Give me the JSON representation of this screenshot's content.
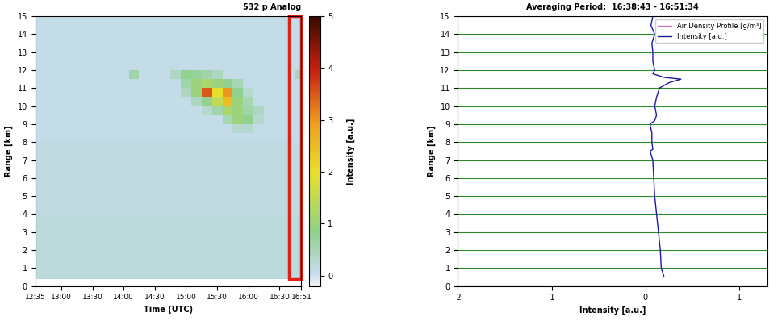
{
  "chart_data": [
    {
      "type": "heatmap",
      "title": "532 p Analog",
      "x_label": "Time (UTC)",
      "y_label": "Range [km]",
      "time_edges": [
        12.583,
        12.75,
        12.917,
        13.083,
        13.25,
        13.417,
        13.583,
        13.75,
        13.917,
        14.083,
        14.25,
        14.417,
        14.583,
        14.75,
        14.917,
        15.083,
        15.25,
        15.417,
        15.583,
        15.75,
        15.917,
        16.083,
        16.25,
        16.417,
        16.583,
        16.75,
        16.85
      ],
      "range_edges": [
        0.4,
        1,
        2,
        3,
        4,
        5,
        6,
        7,
        8,
        8.5,
        9,
        9.5,
        10,
        10.5,
        11,
        11.5,
        12,
        13,
        14,
        15
      ],
      "cells": [
        [
          0.2,
          0.2,
          0.2,
          0.2,
          0.2,
          0.2,
          0.2,
          0.2,
          0.2,
          0.2,
          0.2,
          0.2,
          0.2,
          0.2,
          0.2,
          0.2,
          0.2,
          0.2,
          0.2,
          0.2,
          0.2,
          0.2,
          0.2,
          0.2,
          0.2,
          0.2
        ],
        [
          0.2,
          0.2,
          0.2,
          0.2,
          0.2,
          0.2,
          0.2,
          0.2,
          0.2,
          0.2,
          0.2,
          0.2,
          0.2,
          0.2,
          0.2,
          0.2,
          0.2,
          0.2,
          0.2,
          0.2,
          0.2,
          0.2,
          0.2,
          0.2,
          0.2,
          0.2
        ],
        [
          0.2,
          0.2,
          0.2,
          0.2,
          0.2,
          0.2,
          0.2,
          0.2,
          0.2,
          0.2,
          0.2,
          0.2,
          0.2,
          0.2,
          0.2,
          0.2,
          0.2,
          0.2,
          0.2,
          0.2,
          0.2,
          0.2,
          0.2,
          0.2,
          0.2,
          0.2
        ],
        [
          0.2,
          0.2,
          0.2,
          0.2,
          0.2,
          0.2,
          0.2,
          0.2,
          0.2,
          0.2,
          0.2,
          0.2,
          0.2,
          0.2,
          0.2,
          0.2,
          0.2,
          0.2,
          0.2,
          0.2,
          0.2,
          0.2,
          0.2,
          0.2,
          0.2,
          0.2
        ],
        [
          0.15,
          0.15,
          0.15,
          0.15,
          0.15,
          0.15,
          0.15,
          0.15,
          0.15,
          0.15,
          0.15,
          0.15,
          0.15,
          0.15,
          0.15,
          0.15,
          0.15,
          0.15,
          0.15,
          0.15,
          0.15,
          0.15,
          0.15,
          0.15,
          0.15,
          0.15
        ],
        [
          0.15,
          0.15,
          0.15,
          0.15,
          0.15,
          0.15,
          0.15,
          0.15,
          0.15,
          0.15,
          0.15,
          0.15,
          0.15,
          0.15,
          0.15,
          0.15,
          0.15,
          0.15,
          0.15,
          0.15,
          0.15,
          0.15,
          0.15,
          0.15,
          0.15,
          0.15
        ],
        [
          0.15,
          0.15,
          0.15,
          0.15,
          0.15,
          0.15,
          0.15,
          0.15,
          0.15,
          0.15,
          0.15,
          0.15,
          0.15,
          0.15,
          0.15,
          0.15,
          0.15,
          0.15,
          0.15,
          0.15,
          0.15,
          0.15,
          0.15,
          0.15,
          0.15,
          0.15
        ],
        [
          0.15,
          0.15,
          0.15,
          0.15,
          0.15,
          0.15,
          0.15,
          0.15,
          0.15,
          0.15,
          0.15,
          0.15,
          0.15,
          0.15,
          0.15,
          0.15,
          0.15,
          0.15,
          0.15,
          0.15,
          0.15,
          0.15,
          0.15,
          0.15,
          0.15,
          0.15
        ],
        [
          0.1,
          0.1,
          0.1,
          0.1,
          0.1,
          0.1,
          0.1,
          0.1,
          0.1,
          0.1,
          0.1,
          0.1,
          0.1,
          0.1,
          0.1,
          0.1,
          0.1,
          0.1,
          0.1,
          0.1,
          0.1,
          0.1,
          0.1,
          0.1,
          0.1,
          0.1
        ],
        [
          0.1,
          0.1,
          0.1,
          0.1,
          0.1,
          0.1,
          0.1,
          0.1,
          0.1,
          0.1,
          0.1,
          0.1,
          0.1,
          0.1,
          0.1,
          0.1,
          0.1,
          0.1,
          0.1,
          0.3,
          0.3,
          0.1,
          0.1,
          0.1,
          0.1,
          0.1
        ],
        [
          0.1,
          0.1,
          0.1,
          0.1,
          0.1,
          0.1,
          0.1,
          0.1,
          0.1,
          0.1,
          0.1,
          0.1,
          0.1,
          0.1,
          0.1,
          0.1,
          0.1,
          0.1,
          0.5,
          1.0,
          0.8,
          0.3,
          0.1,
          0.1,
          0.1,
          0.1
        ],
        [
          0.1,
          0.1,
          0.1,
          0.1,
          0.1,
          0.1,
          0.1,
          0.1,
          0.1,
          0.1,
          0.1,
          0.1,
          0.1,
          0.1,
          0.1,
          0.1,
          0.3,
          0.6,
          1.2,
          1.0,
          0.6,
          0.4,
          0.1,
          0.1,
          0.1,
          0.1
        ],
        [
          0.1,
          0.1,
          0.1,
          0.1,
          0.1,
          0.1,
          0.1,
          0.1,
          0.1,
          0.1,
          0.1,
          0.1,
          0.1,
          0.1,
          0.1,
          0.4,
          0.8,
          1.5,
          2.5,
          1.0,
          0.5,
          0.1,
          0.1,
          0.1,
          0.1,
          0.1
        ],
        [
          0.1,
          0.1,
          0.1,
          0.1,
          0.1,
          0.1,
          0.1,
          0.1,
          0.1,
          0.1,
          0.1,
          0.1,
          0.1,
          0.1,
          0.4,
          1.0,
          3.5,
          2.0,
          3.0,
          0.8,
          0.3,
          0.1,
          0.1,
          0.1,
          0.1,
          0.1
        ],
        [
          0.1,
          0.1,
          0.1,
          0.1,
          0.1,
          0.1,
          0.1,
          0.1,
          0.1,
          0.1,
          0.1,
          0.1,
          0.1,
          0.1,
          0.6,
          1.0,
          1.2,
          1.0,
          0.8,
          0.5,
          0.1,
          0.1,
          0.1,
          0.1,
          0.1,
          0.1
        ],
        [
          0.1,
          0.1,
          0.1,
          0.1,
          0.1,
          0.1,
          0.1,
          0.1,
          0.1,
          0.6,
          0.1,
          0.1,
          0.1,
          0.4,
          0.8,
          0.7,
          0.6,
          0.4,
          0.1,
          0.1,
          0.1,
          0.1,
          0.1,
          0.1,
          0.1,
          0.5
        ],
        [
          0.1,
          0.1,
          0.1,
          0.1,
          0.1,
          0.1,
          0.1,
          0.1,
          0.1,
          0.1,
          0.1,
          0.1,
          0.1,
          0.1,
          0.1,
          0.1,
          0.1,
          0.1,
          0.1,
          0.1,
          0.1,
          0.1,
          0.1,
          0.1,
          0.1,
          0.1
        ],
        [
          0.1,
          0.1,
          0.1,
          0.1,
          0.1,
          0.1,
          0.1,
          0.1,
          0.1,
          0.1,
          0.1,
          0.1,
          0.1,
          0.1,
          0.1,
          0.1,
          0.1,
          0.1,
          0.1,
          0.1,
          0.1,
          0.1,
          0.1,
          0.1,
          0.1,
          0.1
        ],
        [
          0.1,
          0.1,
          0.1,
          0.1,
          0.1,
          0.1,
          0.1,
          0.1,
          0.1,
          0.1,
          0.1,
          0.1,
          0.1,
          0.1,
          0.1,
          0.1,
          0.1,
          0.1,
          0.1,
          0.1,
          0.1,
          0.1,
          0.1,
          0.1,
          0.1,
          0.1
        ]
      ],
      "xlim": [
        12.583,
        16.85
      ],
      "xticks": [
        {
          "value": 12.583,
          "label": "12:35"
        },
        {
          "value": 13,
          "label": "13:00"
        },
        {
          "value": 13.5,
          "label": "13:30"
        },
        {
          "value": 14,
          "label": "14:00"
        },
        {
          "value": 14.5,
          "label": "14:30"
        },
        {
          "value": 15,
          "label": "15:00"
        },
        {
          "value": 15.5,
          "label": "15:30"
        },
        {
          "value": 16,
          "label": "16:00"
        },
        {
          "value": 16.5,
          "label": "16:30"
        },
        {
          "value": 16.85,
          "label": "16:51"
        }
      ],
      "ylim": [
        0,
        15
      ],
      "yticks": [
        0,
        1,
        2,
        3,
        4,
        5,
        6,
        7,
        8,
        9,
        10,
        11,
        12,
        13,
        14,
        15
      ],
      "colorbar": {
        "label": "Intensity [a.u.]",
        "range": [
          -0.2,
          5
        ],
        "ticks": [
          0,
          1,
          2,
          3,
          4,
          5
        ]
      },
      "highlight_period": [
        16.645,
        16.85
      ]
    },
    {
      "type": "line",
      "title": "Averaging Period:  16:38:43 - 16:51:34",
      "x_label": "Intensity [a.u.]",
      "y_label": "Range [km]",
      "series": [
        {
          "name": "Air Density Profile [g/m³]",
          "color": "#d070c8"
        },
        {
          "name": "Intensity [a.u.]",
          "color": "#1a1aa8",
          "range": [
            0.5,
            1,
            2,
            3,
            4,
            5,
            6,
            7,
            7.5,
            7.6,
            8,
            8.5,
            9,
            9.2,
            9.5,
            10,
            10.5,
            11,
            11.3,
            11.5,
            11.6,
            11.8,
            12,
            12.5,
            13,
            13.5,
            14,
            14.5,
            15
          ],
          "values": [
            0.2,
            0.17,
            0.16,
            0.14,
            0.12,
            0.1,
            0.09,
            0.08,
            0.05,
            0.08,
            0.07,
            0.07,
            0.05,
            0.1,
            0.12,
            0.1,
            0.12,
            0.15,
            0.25,
            0.38,
            0.2,
            0.08,
            0.1,
            0.08,
            0.08,
            0.07,
            0.1,
            0.06,
            0.08
          ]
        }
      ],
      "xlim": [
        -2,
        1.3
      ],
      "xticks": [
        -2,
        -1,
        0,
        1
      ],
      "ylim": [
        0,
        15
      ],
      "yticks": [
        0,
        1,
        2,
        3,
        4,
        5,
        6,
        7,
        8,
        9,
        10,
        11,
        12,
        13,
        14,
        15
      ],
      "reference_x": 0,
      "grid": true,
      "legend": "upper right"
    }
  ]
}
